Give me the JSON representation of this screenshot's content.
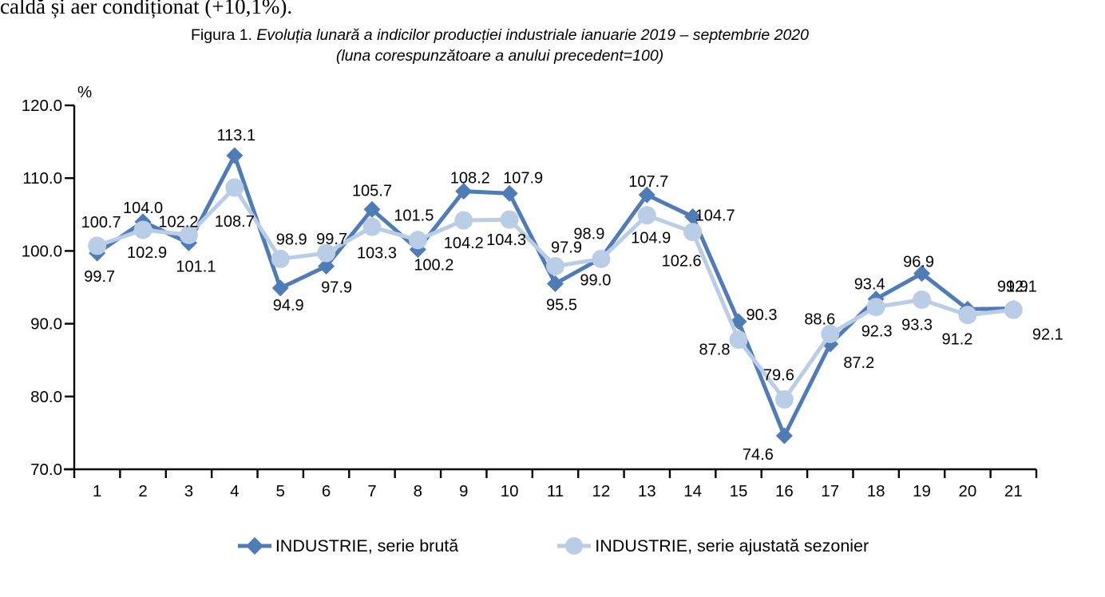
{
  "page": {
    "top_text": "caldă și aer condiționat (+10,1%).",
    "title_prefix": "Figura 1. ",
    "title_main": "Evoluția lunară a indicilor producției industriale ianuarie 2019 – septembrie 2020",
    "subtitle": "(luna corespunzătoare a anului precedent=100)"
  },
  "chart_data": {
    "type": "line",
    "title": "Figura 1. Evoluția lunară a indicilor producției industriale ianuarie 2019 – septembrie 2020",
    "subtitle": "(luna corespunzătoare a anului precedent=100)",
    "ylabel": "%",
    "xlabel": "",
    "ylim": [
      70,
      120
    ],
    "y_ticks": [
      120,
      110,
      100,
      90,
      80,
      70
    ],
    "grid": false,
    "legend_position": "bottom",
    "x": [
      1,
      2,
      3,
      4,
      5,
      6,
      7,
      8,
      9,
      10,
      11,
      12,
      13,
      14,
      15,
      16,
      17,
      18,
      19,
      20,
      21
    ],
    "axis_color": "#000000",
    "label_color": "#000000",
    "series": [
      {
        "name": "INDUSTRIE, serie brută",
        "marker": "diamond",
        "color": "#4F7CB7",
        "values": [
          99.7,
          104.0,
          101.1,
          113.1,
          94.9,
          97.9,
          105.7,
          100.2,
          108.2,
          107.9,
          95.5,
          99.0,
          107.7,
          104.7,
          90.3,
          74.6,
          87.2,
          93.4,
          96.9,
          92.0,
          92.1
        ],
        "labels": [
          {
            "text": "99.7",
            "dx": 3,
            "dy": 36
          },
          {
            "text": "104.0",
            "dx": 0,
            "dy": -11
          },
          {
            "text": "101.1",
            "dx": 9,
            "dy": 36
          },
          {
            "text": "113.1",
            "dx": 2,
            "dy": -19
          },
          {
            "text": "94.9",
            "dx": 10,
            "dy": 28
          },
          {
            "text": "97.9",
            "dx": 13,
            "dy": 33
          },
          {
            "text": "105.7",
            "dx": 0,
            "dy": -17
          },
          {
            "text": "100.2",
            "dx": 20,
            "dy": 26
          },
          {
            "text": "108.2",
            "dx": 8,
            "dy": -10
          },
          {
            "text": "107.9",
            "dx": 17,
            "dy": -13
          },
          {
            "text": "95.5",
            "dx": 8,
            "dy": 33
          },
          {
            "text": "99.0",
            "dx": -7,
            "dy": 34
          },
          {
            "text": "107.7",
            "dx": 2,
            "dy": -10
          },
          {
            "text": "104.7",
            "dx": 28,
            "dy": 5
          },
          {
            "text": "90.3",
            "dx": 29,
            "dy": -2
          },
          {
            "text": "74.6",
            "dx": -33,
            "dy": 30
          },
          {
            "text": "87.2",
            "dx": 36,
            "dy": 30
          },
          {
            "text": "93.4",
            "dx": -8,
            "dy": -12
          },
          {
            "text": "96.9",
            "dx": -4,
            "dy": -8
          },
          {
            "text": "",
            "dx": 0,
            "dy": 0
          },
          {
            "text": "92.1",
            "dx": 10,
            "dy": -21
          }
        ]
      },
      {
        "name": "INDUSTRIE, serie ajustată sezonier",
        "marker": "circle",
        "color": "#B9CDE6",
        "values": [
          100.7,
          102.9,
          102.2,
          108.7,
          98.9,
          99.7,
          103.3,
          101.5,
          104.2,
          104.3,
          97.9,
          98.9,
          104.9,
          102.6,
          87.8,
          79.6,
          88.6,
          92.3,
          93.3,
          91.2,
          91.9
        ],
        "labels": [
          {
            "text": "100.7",
            "dx": 5,
            "dy": -23
          },
          {
            "text": "102.9",
            "dx": 5,
            "dy": 35
          },
          {
            "text": "102.2",
            "dx": -13,
            "dy": -10
          },
          {
            "text": "108.7",
            "dx": 0,
            "dy": 49
          },
          {
            "text": "98.9",
            "dx": 14,
            "dy": -18
          },
          {
            "text": "99.7",
            "dx": 7,
            "dy": -11
          },
          {
            "text": "103.3",
            "dx": 6,
            "dy": 39
          },
          {
            "text": "101.5",
            "dx": -5,
            "dy": -24
          },
          {
            "text": "104.2",
            "dx": 0,
            "dy": 35
          },
          {
            "text": "104.3",
            "dx": -4,
            "dy": 32
          },
          {
            "text": "97.9",
            "dx": 14,
            "dy": -17
          },
          {
            "text": "98.9",
            "dx": -15,
            "dy": -25
          },
          {
            "text": "104.9",
            "dx": 5,
            "dy": 35
          },
          {
            "text": "102.6",
            "dx": -14,
            "dy": 43
          },
          {
            "text": "87.8",
            "dx": -30,
            "dy": 19
          },
          {
            "text": "79.6",
            "dx": -7,
            "dy": -24
          },
          {
            "text": "88.6",
            "dx": -13,
            "dy": -12
          },
          {
            "text": "92.3",
            "dx": 1,
            "dy": 37
          },
          {
            "text": "93.3",
            "dx": -6,
            "dy": 38
          },
          {
            "text": "91.2",
            "dx": -13,
            "dy": 37
          },
          {
            "text": "91.9",
            "dx": -1,
            "dy": -23
          }
        ]
      }
    ],
    "annotations": [
      {
        "text": "92.1",
        "month": 21,
        "dx": 43,
        "dy": 39
      }
    ]
  }
}
